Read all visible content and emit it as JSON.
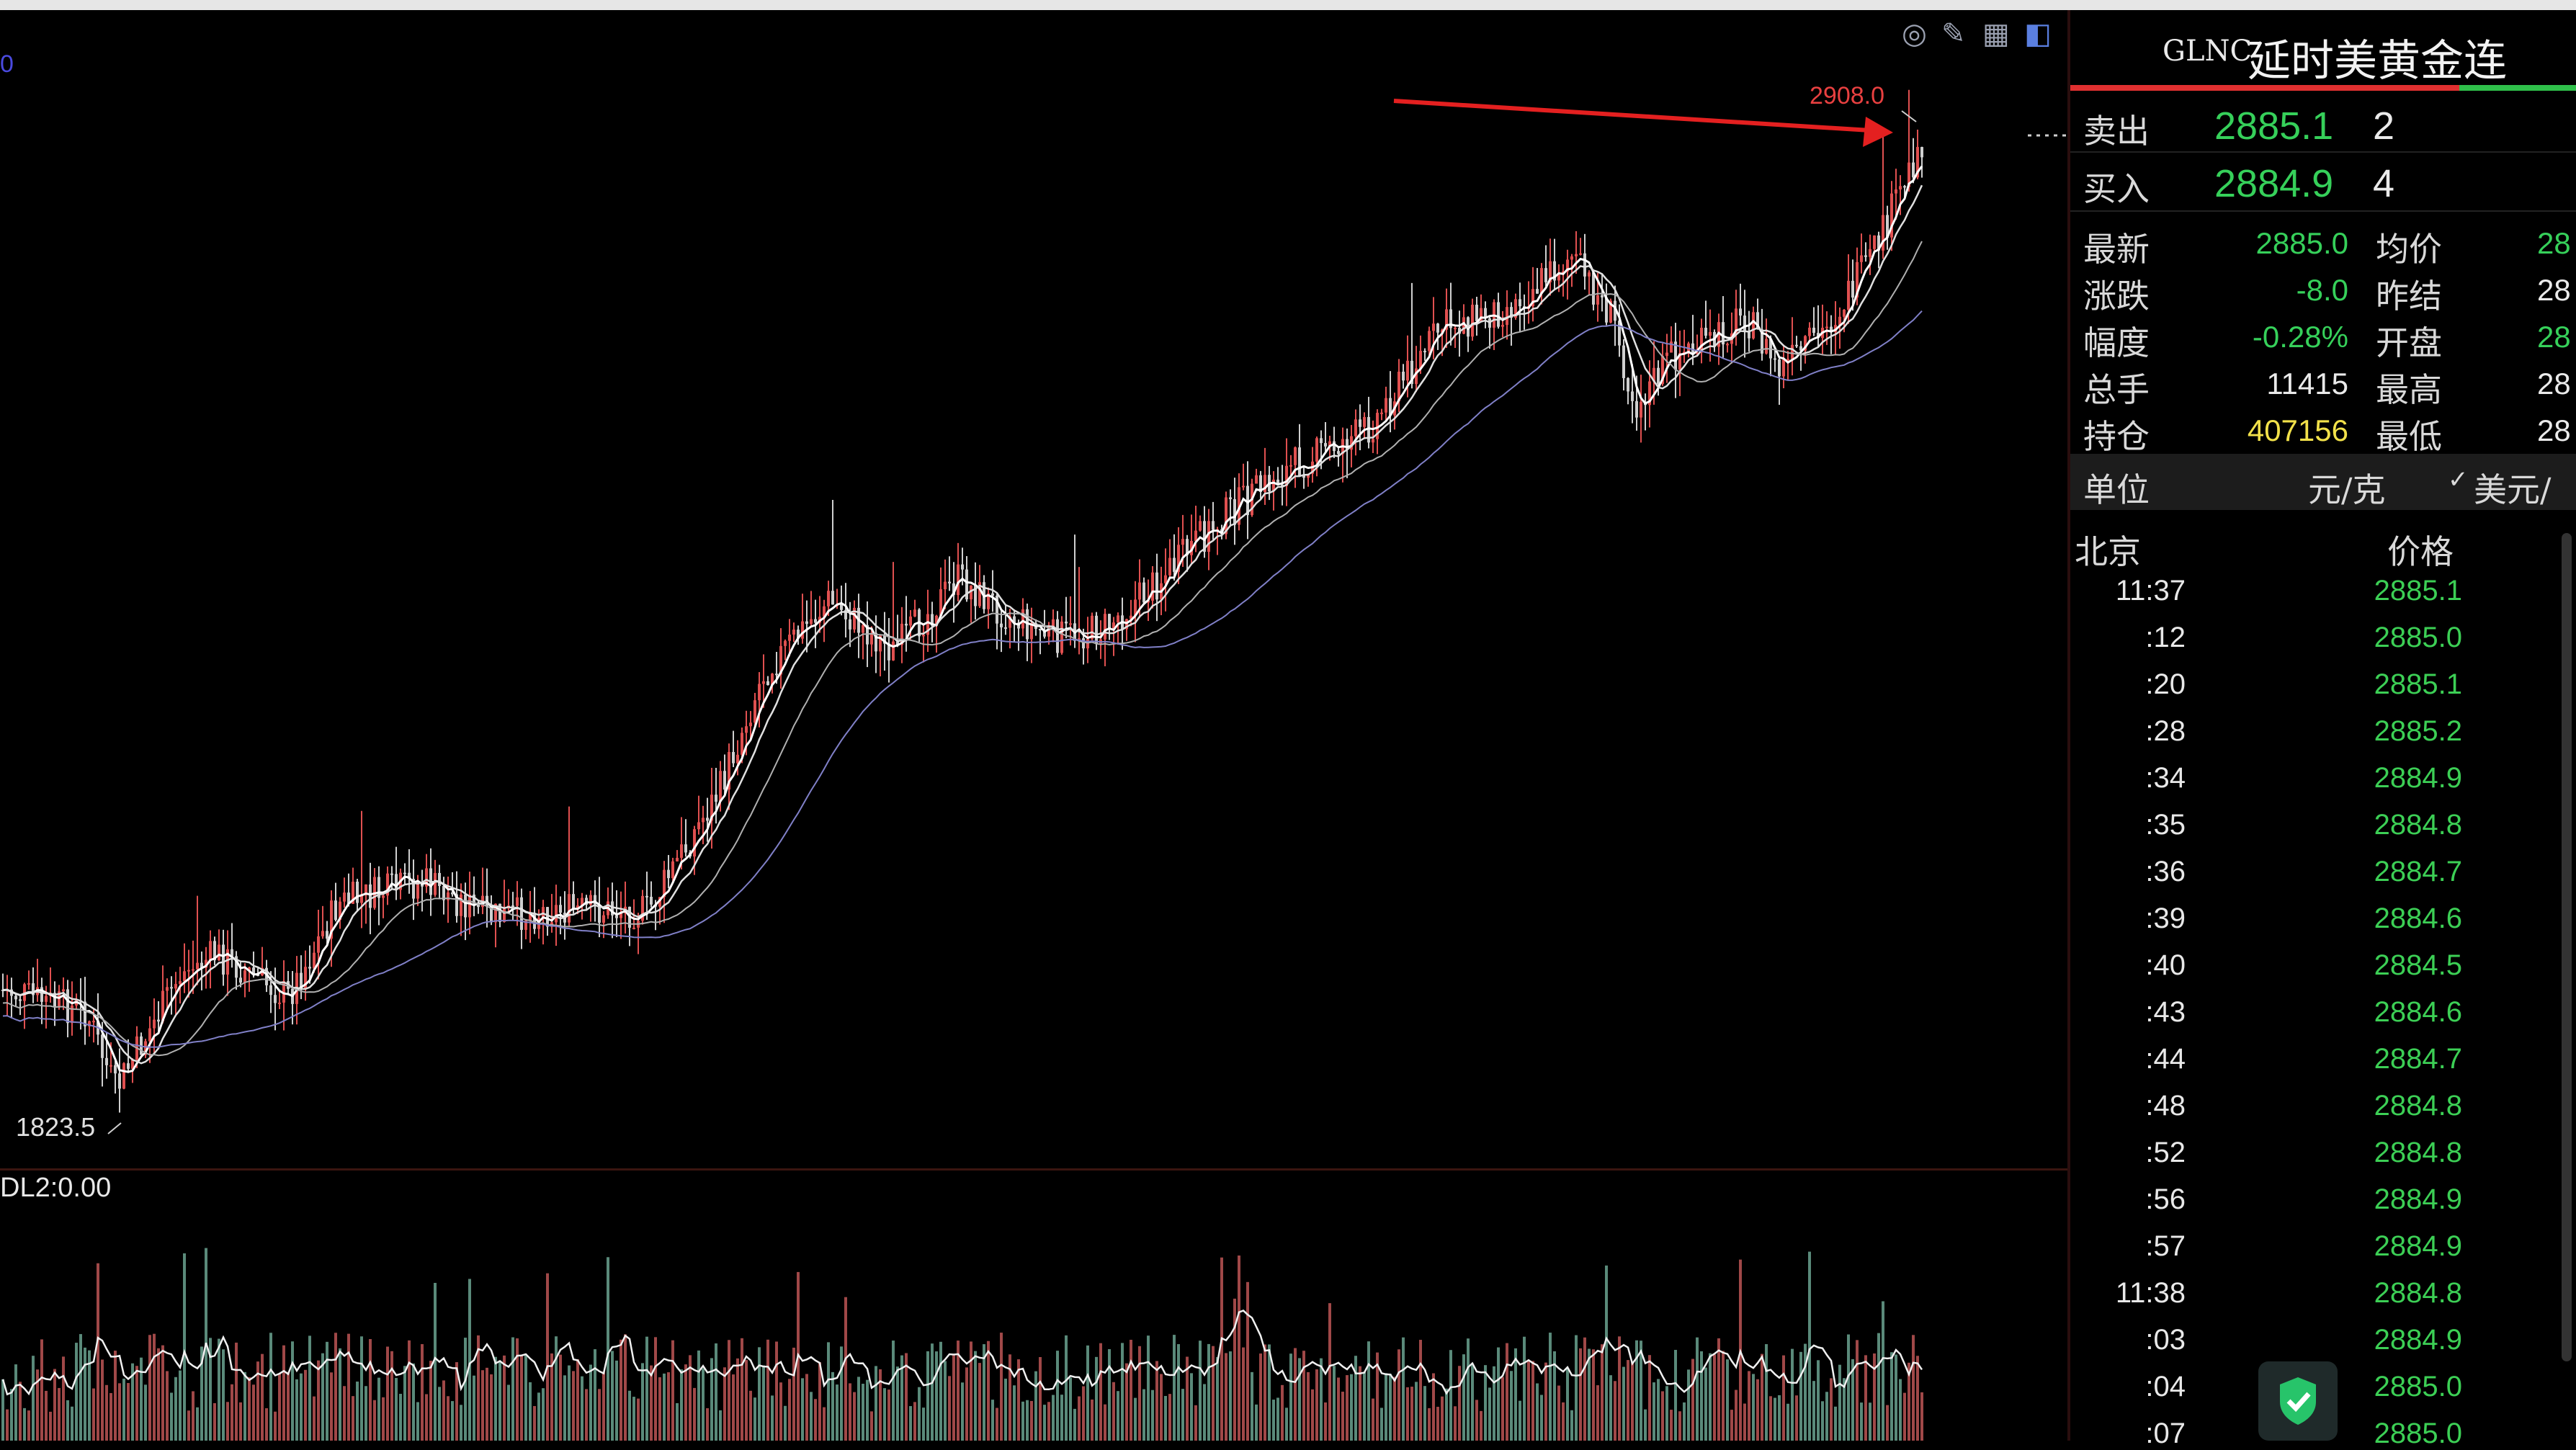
{
  "window": {
    "topbar": ""
  },
  "chart": {
    "high_label": "2908.0",
    "low_label": "1823.5",
    "volume_indicator": "DL2:0.00",
    "left_edge_label": "0",
    "toolbar_icons": [
      "eye-icon",
      "pencil-icon",
      "grid-icon",
      "panel-toggle-icon"
    ],
    "colors": {
      "up": "#e05050",
      "down": "#3ccf78",
      "arrow": "#e42020",
      "ma1": "#ffffff",
      "ma2": "#d8d8d8",
      "ma3": "#a0a0a0",
      "ma4": "#7070c0"
    }
  },
  "quote": {
    "code": "GLNC",
    "name": "延时美黄金连",
    "sell_label": "卖出",
    "sell_price": "2885.1",
    "sell_qty": "2",
    "buy_label": "买入",
    "buy_price": "2884.9",
    "buy_qty": "4",
    "stats": [
      {
        "label": "最新",
        "value": "2885.0",
        "label2": "均价",
        "value2": "28"
      },
      {
        "label": "涨跌",
        "value": "-8.0",
        "label2": "昨结",
        "value2": "28"
      },
      {
        "label": "幅度",
        "value": "-0.28%",
        "label2": "开盘",
        "value2": "28"
      },
      {
        "label": "总手",
        "value": "11415",
        "label2": "最高",
        "value2": "28"
      },
      {
        "label": "持仓",
        "value": "407156",
        "label2": "最低",
        "value2": "28"
      }
    ],
    "unit_label": "单位",
    "unit_value": "元/克",
    "unit_alt": "美元/",
    "ticks_header_time": "北京",
    "ticks_header_price": "价格",
    "ticks": [
      {
        "time": "11:37",
        "price": "2885.1"
      },
      {
        "time": ":12",
        "price": "2885.0"
      },
      {
        "time": ":20",
        "price": "2885.1"
      },
      {
        "time": ":28",
        "price": "2885.2"
      },
      {
        "time": ":34",
        "price": "2884.9"
      },
      {
        "time": ":35",
        "price": "2884.8"
      },
      {
        "time": ":36",
        "price": "2884.7"
      },
      {
        "time": ":39",
        "price": "2884.6"
      },
      {
        "time": ":40",
        "price": "2884.5"
      },
      {
        "time": ":43",
        "price": "2884.6"
      },
      {
        "time": ":44",
        "price": "2884.7"
      },
      {
        "time": ":48",
        "price": "2884.8"
      },
      {
        "time": ":52",
        "price": "2884.8"
      },
      {
        "time": ":56",
        "price": "2884.9"
      },
      {
        "time": ":57",
        "price": "2884.9"
      },
      {
        "time": "11:38",
        "price": "2884.8"
      },
      {
        "time": ":03",
        "price": "2884.9"
      },
      {
        "time": ":04",
        "price": "2885.0"
      },
      {
        "time": ":07",
        "price": "2885.0"
      }
    ]
  }
}
